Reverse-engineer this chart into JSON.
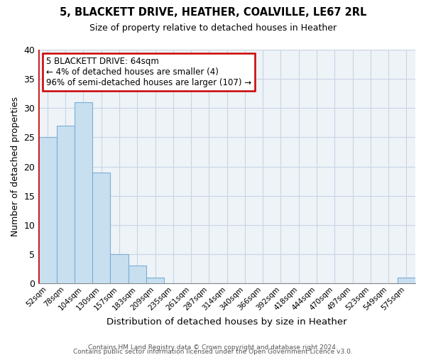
{
  "title": "5, BLACKETT DRIVE, HEATHER, COALVILLE, LE67 2RL",
  "subtitle": "Size of property relative to detached houses in Heather",
  "xlabel": "Distribution of detached houses by size in Heather",
  "ylabel": "Number of detached properties",
  "bar_labels": [
    "52sqm",
    "78sqm",
    "104sqm",
    "130sqm",
    "157sqm",
    "183sqm",
    "209sqm",
    "235sqm",
    "261sqm",
    "287sqm",
    "314sqm",
    "340sqm",
    "366sqm",
    "392sqm",
    "418sqm",
    "444sqm",
    "470sqm",
    "497sqm",
    "523sqm",
    "549sqm",
    "575sqm"
  ],
  "bar_values": [
    25,
    27,
    31,
    19,
    5,
    3,
    1,
    0,
    0,
    0,
    0,
    0,
    0,
    0,
    0,
    0,
    0,
    0,
    0,
    0,
    1
  ],
  "bar_color": "#c8dff0",
  "bar_edge_color": "#7aaed4",
  "highlight_color": "#cc0000",
  "ylim": [
    0,
    40
  ],
  "yticks": [
    0,
    5,
    10,
    15,
    20,
    25,
    30,
    35,
    40
  ],
  "annotation_title": "5 BLACKETT DRIVE: 64sqm",
  "annotation_line1": "← 4% of detached houses are smaller (4)",
  "annotation_line2": "96% of semi-detached houses are larger (107) →",
  "footer_line1": "Contains HM Land Registry data © Crown copyright and database right 2024.",
  "footer_line2": "Contains public sector information licensed under the Open Government Licence v3.0.",
  "bg_color": "#ffffff",
  "plot_bg_color": "#eef3f8",
  "grid_color": "#c8d4e4",
  "annotation_box_color": "#ffffff",
  "annotation_border_color": "#cc0000"
}
